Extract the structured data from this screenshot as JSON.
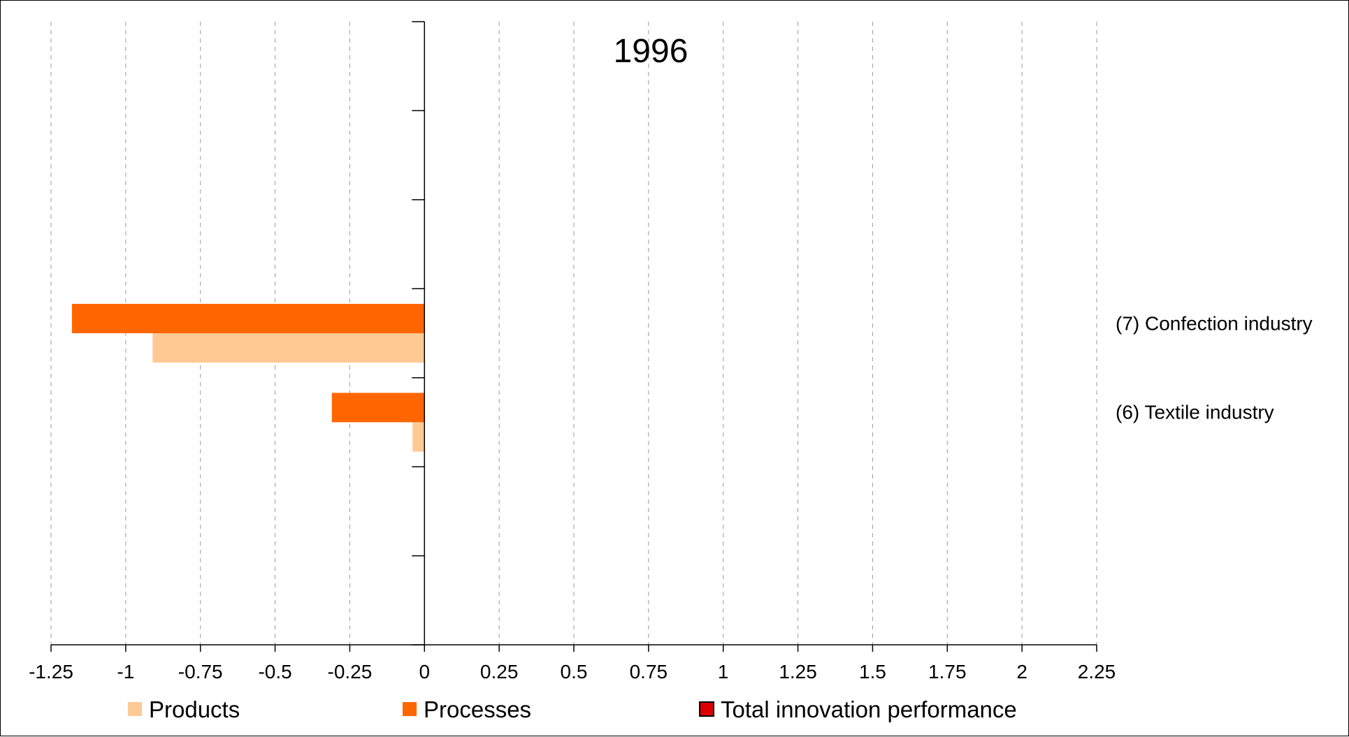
{
  "chart_data": {
    "type": "bar",
    "orientation": "horizontal",
    "title": "1996",
    "xlabel": "",
    "ylabel": "",
    "xlim": [
      -1.25,
      2.25
    ],
    "x_ticks": [
      "-1.25",
      "-1",
      "-0.75",
      "-0.5",
      "-0.25",
      "0",
      "0.25",
      "0.5",
      "0.75",
      "1",
      "1.25",
      "1.5",
      "1.75",
      "2",
      "2.25"
    ],
    "grid": "vertical dashed",
    "legend_position": "bottom",
    "categories": [
      "(7) Confection industry",
      "(6) Textile industry"
    ],
    "series": [
      {
        "name": "Products",
        "color": "#FFC993",
        "values": [
          -0.91,
          -0.04
        ]
      },
      {
        "name": "Processes",
        "color": "#FF6600",
        "values": [
          -1.18,
          -0.31
        ]
      },
      {
        "name": "Total innovation performance",
        "color": "#DD0000",
        "values": [
          null,
          null
        ]
      }
    ]
  }
}
